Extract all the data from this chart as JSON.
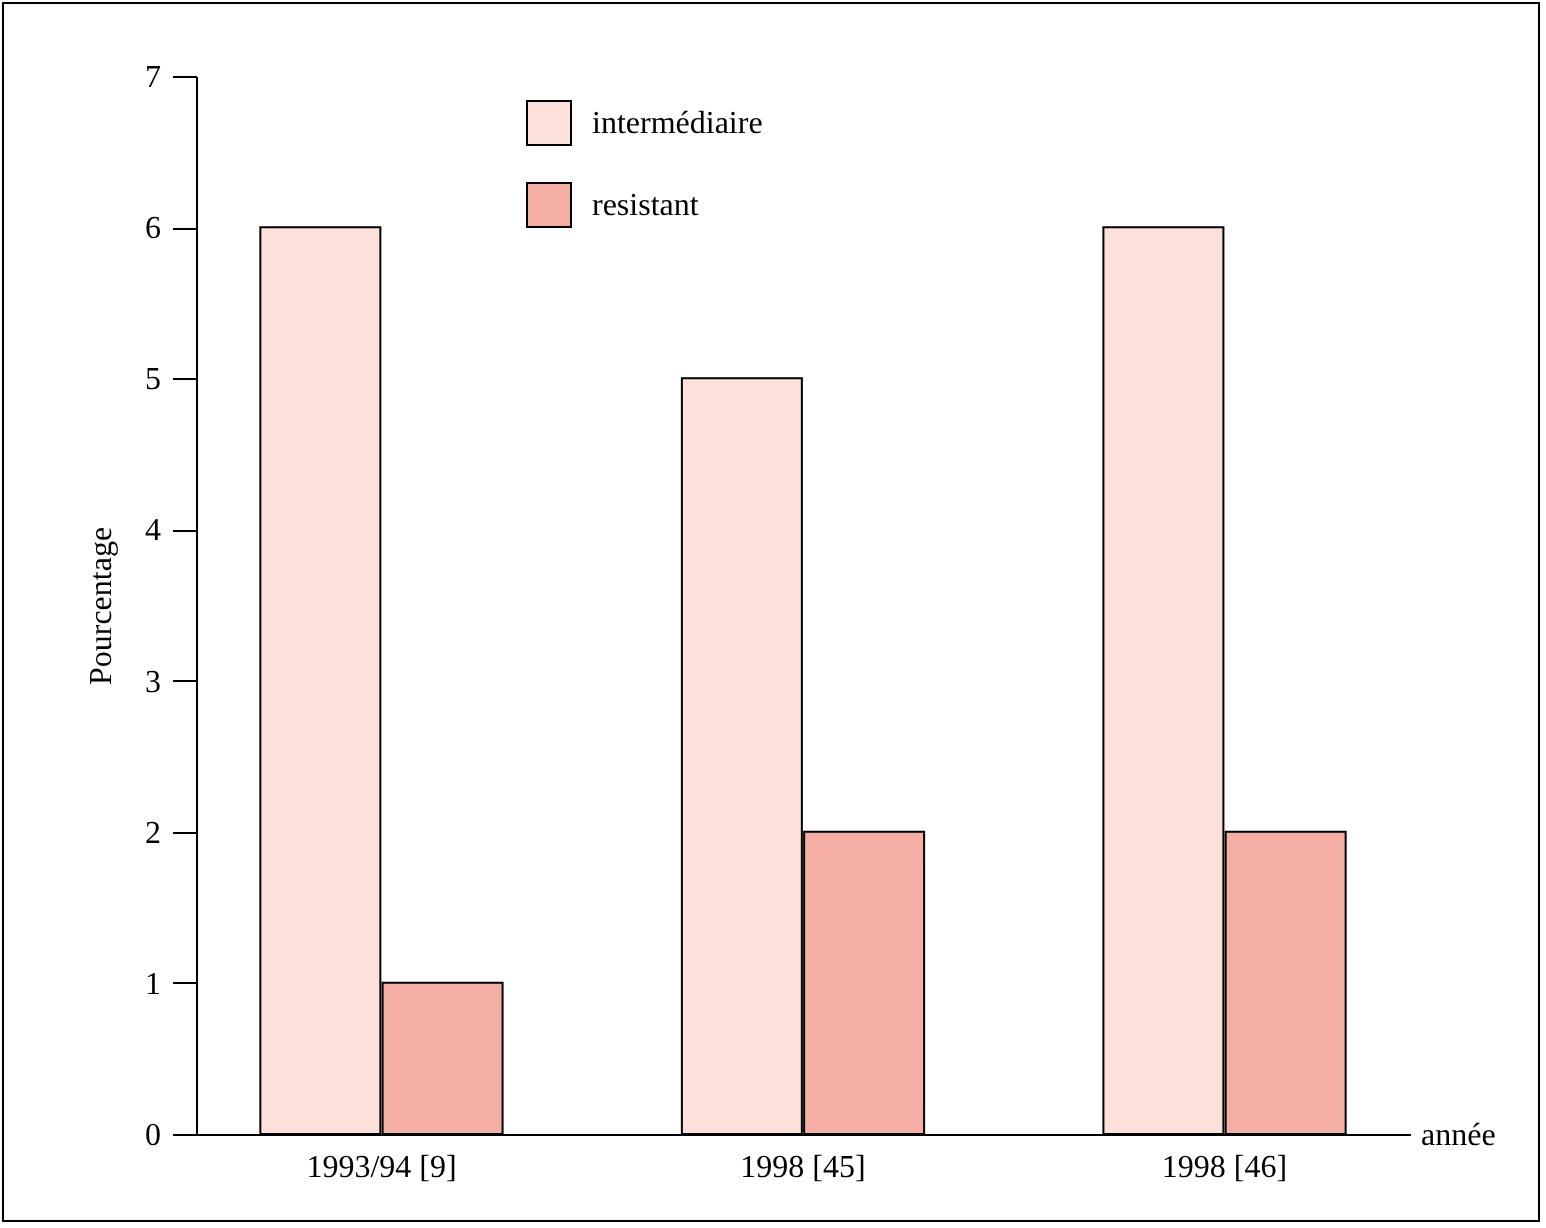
{
  "chart_data": {
    "type": "bar",
    "ylabel": "Pourcentage",
    "xlabel": "année",
    "categories": [
      "1993/94 [9]",
      "1998 [45]",
      "1998 [46]"
    ],
    "series": [
      {
        "name": "intermédiaire",
        "color": "#fce0da",
        "values": [
          6,
          5,
          6
        ]
      },
      {
        "name": "resistant",
        "color": "#f4aea4",
        "values": [
          1,
          2,
          2
        ]
      }
    ],
    "ylim": [
      0,
      7
    ],
    "yticks": [
      0,
      1,
      2,
      3,
      4,
      5,
      6,
      7
    ],
    "grid": false,
    "legend": "top left"
  }
}
